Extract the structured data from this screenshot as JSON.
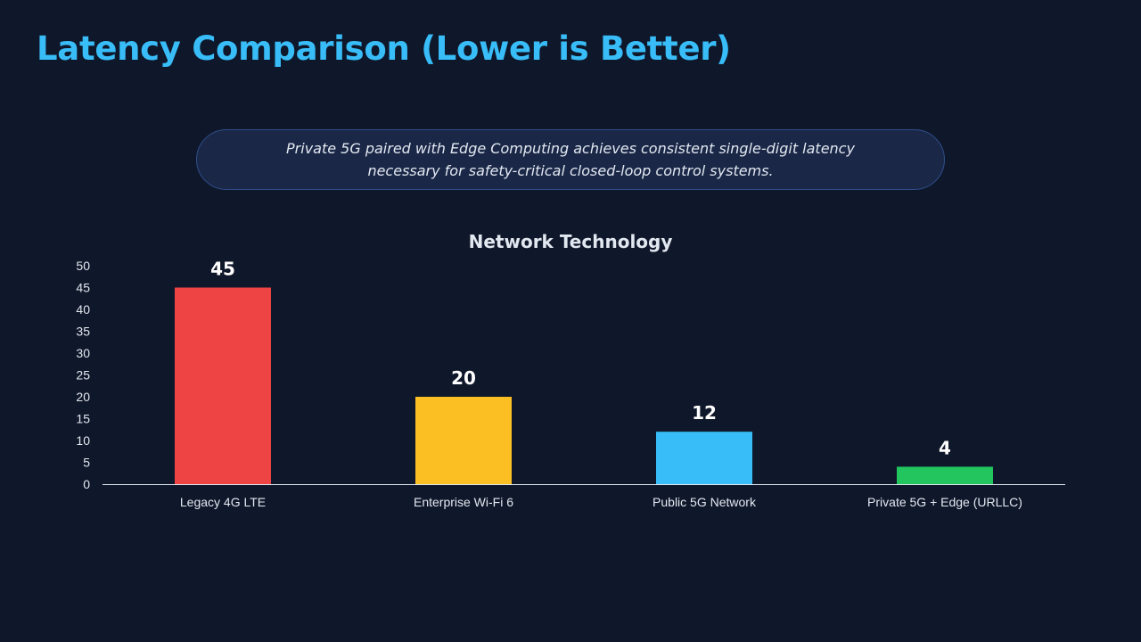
{
  "slide": {
    "title": "Latency Comparison (Lower is Better)",
    "callout": "Private 5G paired with Edge Computing achieves consistent single-digit latency necessary for safety-critical closed-loop control systems.",
    "colors": {
      "background": "#0f172a",
      "title": "#38bdf8",
      "callout_bg": "#1a2747",
      "callout_border": "#2f4e8a",
      "text": "#e2e8f0"
    }
  },
  "chart_data": {
    "type": "bar",
    "title": "Network Technology",
    "xlabel": "",
    "ylabel": "",
    "categories": [
      "Legacy 4G LTE",
      "Enterprise Wi-Fi 6",
      "Public 5G Network",
      "Private 5G + Edge (URLLC)"
    ],
    "values": [
      45,
      20,
      12,
      4
    ],
    "colors": [
      "#ef4444",
      "#fbbf24",
      "#38bdf8",
      "#22c55e"
    ],
    "ylim": [
      0,
      50
    ],
    "yticks": [
      0,
      5,
      10,
      15,
      20,
      25,
      30,
      35,
      40,
      45,
      50
    ],
    "grid": false,
    "legend": "none",
    "data_labels": true
  }
}
